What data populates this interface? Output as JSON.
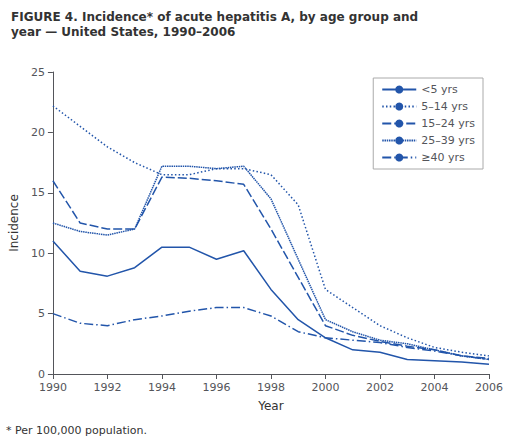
{
  "chart_data": {
    "type": "line",
    "title": "FIGURE 4. Incidence* of acute hepatitis A, by age group and",
    "subtitle": "year — United States, 1990–2006",
    "xlabel": "Year",
    "ylabel": "Incidence",
    "annotations": [
      "* Per 100,000 population."
    ],
    "x": [
      1990,
      1991,
      1992,
      1993,
      1994,
      1995,
      1996,
      1997,
      1998,
      1999,
      2000,
      2001,
      2002,
      2003,
      2004,
      2005,
      2006
    ],
    "series": [
      {
        "name": "<5 yrs",
        "color": "#2255aa",
        "line_style": "solid",
        "values": [
          11.0,
          8.5,
          8.1,
          8.8,
          10.5,
          10.5,
          9.5,
          10.2,
          7.0,
          4.5,
          3.0,
          2.0,
          1.8,
          1.2,
          1.1,
          1.0,
          0.8
        ]
      },
      {
        "name": "5–14 yrs",
        "color": "#2255aa",
        "line_style": "dotted",
        "values": [
          22.2,
          20.5,
          18.8,
          17.5,
          16.5,
          16.5,
          17.0,
          17.0,
          16.5,
          14.0,
          7.0,
          5.5,
          4.0,
          3.0,
          2.2,
          1.8,
          1.5
        ]
      },
      {
        "name": "15–24 yrs",
        "color": "#2255aa",
        "line_style": "dashed",
        "values": [
          16.0,
          12.5,
          12.0,
          12.0,
          16.3,
          16.2,
          16.0,
          15.7,
          12.0,
          8.0,
          4.0,
          3.2,
          2.7,
          2.3,
          2.0,
          1.5,
          1.3
        ]
      },
      {
        "name": "25–39 yrs",
        "color": "#2255aa",
        "line_style": "densely_dotted",
        "values": [
          12.5,
          11.8,
          11.5,
          12.0,
          17.2,
          17.2,
          17.0,
          17.2,
          14.5,
          9.5,
          4.5,
          3.5,
          2.8,
          2.5,
          2.0,
          1.5,
          1.2
        ]
      },
      {
        "name": "≥40 yrs",
        "color": "#2255aa",
        "line_style": "dashdot",
        "values": [
          5.0,
          4.2,
          4.0,
          4.5,
          4.8,
          5.2,
          5.5,
          5.5,
          4.8,
          3.5,
          3.0,
          2.8,
          2.6,
          2.2,
          1.9,
          1.5,
          1.2
        ]
      }
    ],
    "xlim": [
      1990,
      2006
    ],
    "xticks": [
      1990,
      1992,
      1994,
      1996,
      1998,
      2000,
      2002,
      2004,
      2006
    ],
    "ylim": [
      0,
      25
    ],
    "yticks": [
      0,
      5,
      10,
      15,
      20,
      25
    ],
    "grid": false,
    "legend": "upper right"
  }
}
